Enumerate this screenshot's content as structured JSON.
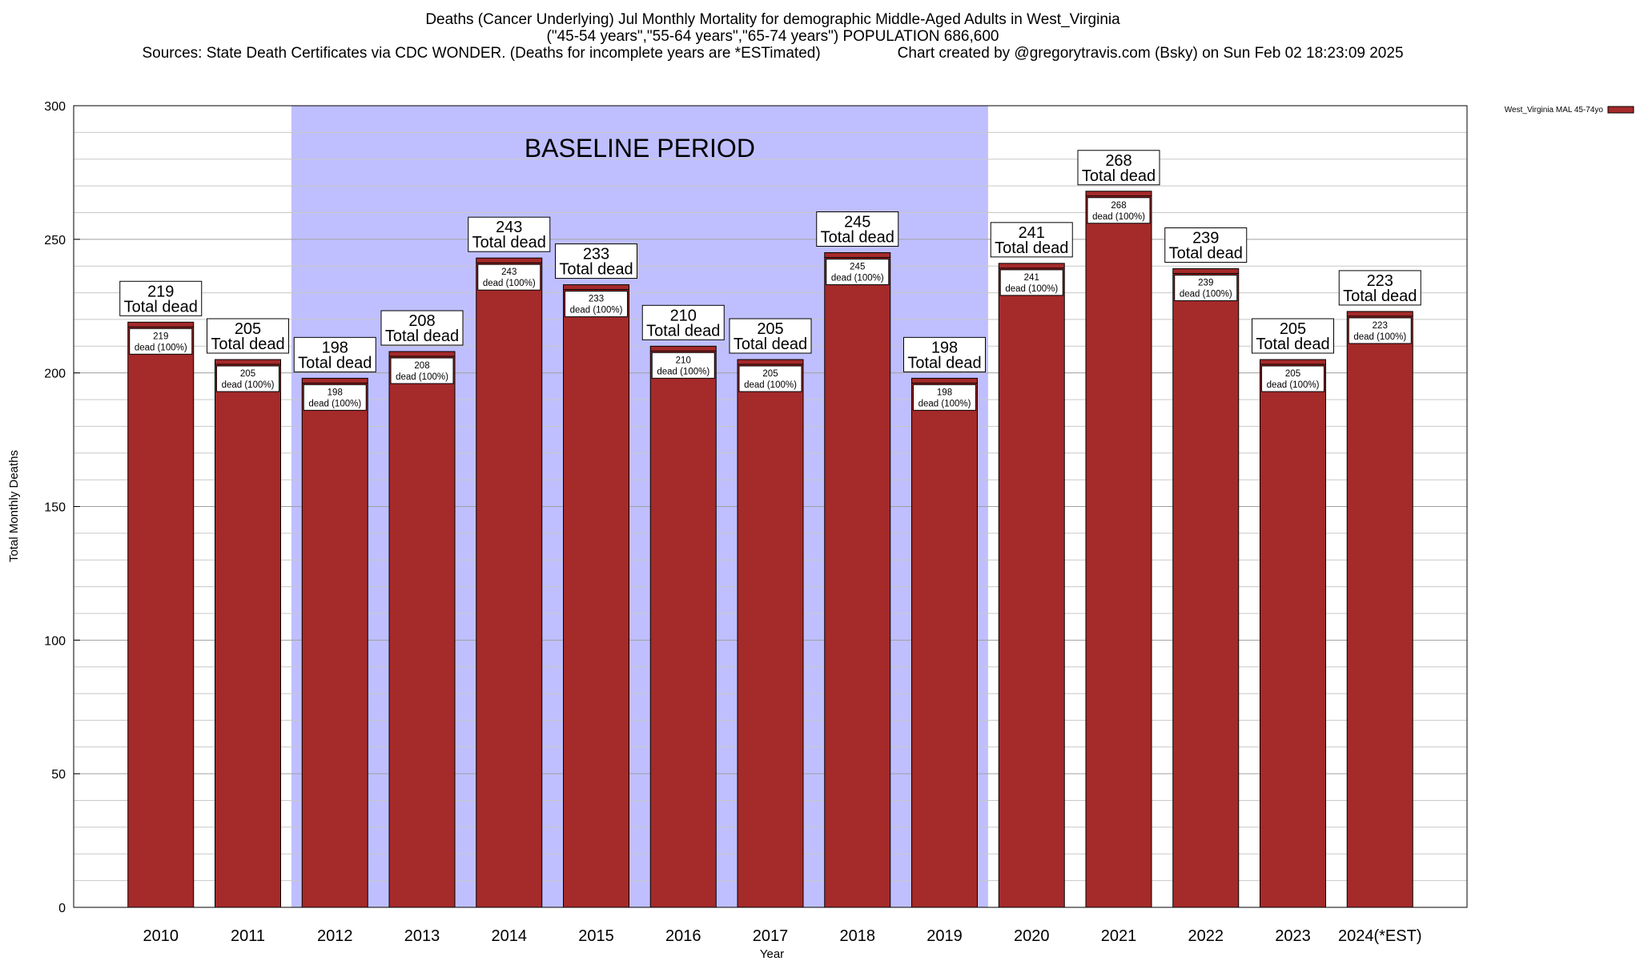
{
  "chart_data": {
    "type": "bar",
    "title": "Deaths (Cancer Underlying) Jul Monthly Mortality for demographic Middle-Aged Adults in West_Virginia",
    "subtitle": "(\"45-54 years\",\"55-64 years\",\"65-74 years\") POPULATION 686,600",
    "sources": "Sources: State Death Certificates via CDC WONDER. (Deaths for incomplete years are *ESTimated)",
    "credit": "Chart created by @gregorytravis.com (Bsky) on Sun Feb 02 18:23:09 2025",
    "xlabel": "Year",
    "ylabel": "Total Monthly Deaths",
    "ylim": [
      0,
      300
    ],
    "yticks": [
      0,
      50,
      100,
      150,
      200,
      250,
      300
    ],
    "grid": true,
    "legend_position": "top-right",
    "categories": [
      "2010",
      "2011",
      "2012",
      "2013",
      "2014",
      "2015",
      "2016",
      "2017",
      "2018",
      "2019",
      "2020",
      "2021",
      "2022",
      "2023",
      "2024(*EST)"
    ],
    "series": [
      {
        "name": "West_Virginia MAL 45-74yo",
        "color": "#a52a2a",
        "values": [
          219,
          205,
          198,
          208,
          243,
          233,
          210,
          205,
          245,
          198,
          241,
          268,
          239,
          205,
          223
        ]
      }
    ],
    "total_label_suffix": "Total dead",
    "inner_label_suffix": "dead (100%)",
    "baseline": {
      "label": "BASELINE PERIOD",
      "start": "2012",
      "end": "2019",
      "color": "#bfbfff"
    }
  }
}
